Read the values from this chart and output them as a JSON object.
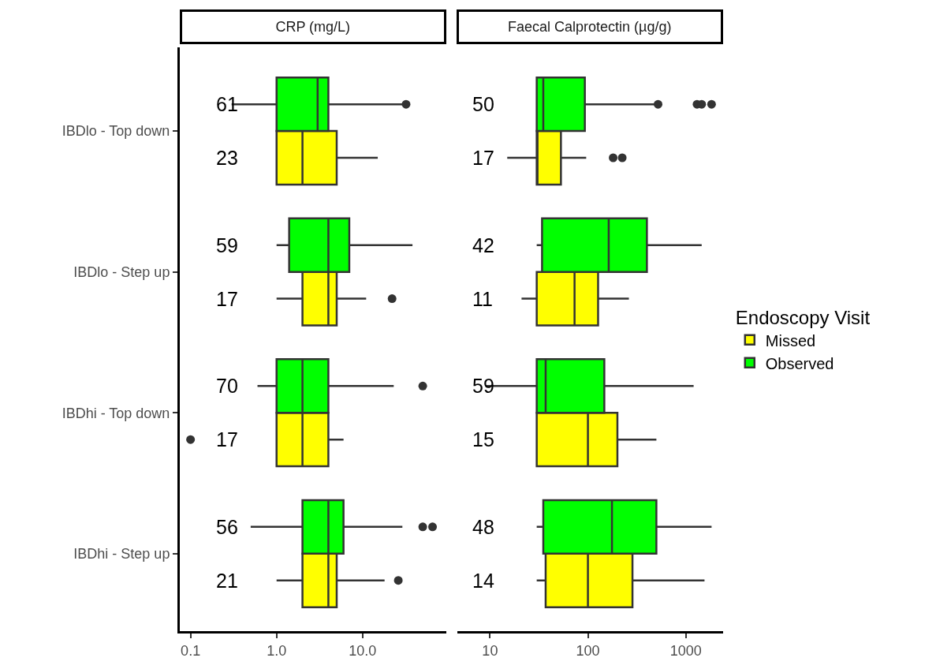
{
  "chart_data": [
    {
      "type": "box",
      "title": "CRP (mg/L)",
      "orientation": "horizontal",
      "log": "x",
      "legend": "right",
      "legend_title": "Endoscopy Visit",
      "categories": [
        "IBDlo - Top down",
        "IBDlo - Step up",
        "IBDhi - Top down",
        "IBDhi - Step up"
      ],
      "xlim": [
        0.075,
        93
      ],
      "xticks": [
        {
          "value": 0.1,
          "label": "0.1"
        },
        {
          "value": 1,
          "label": "1.0"
        },
        {
          "value": 10,
          "label": "10.0"
        }
      ],
      "series": [
        {
          "name": "Missed",
          "color": "#ffff00",
          "value_labels": [
            "23",
            "17",
            "17",
            "21"
          ],
          "boxes": [
            {
              "low": 1.0,
              "q1": 1.0,
              "median": 2.0,
              "q3": 5.0,
              "high": 15
            },
            {
              "low": 1.0,
              "q1": 2.0,
              "median": 4.0,
              "q3": 5.0,
              "high": 11,
              "outliers": [
                22
              ]
            },
            {
              "low": 1.0,
              "q1": 1.0,
              "median": 2.0,
              "q3": 4.0,
              "high": 6,
              "outliers": [
                0.1
              ]
            },
            {
              "low": 1.0,
              "q1": 2.0,
              "median": 4.0,
              "q3": 5.0,
              "high": 18,
              "outliers": [
                26
              ]
            }
          ]
        },
        {
          "name": "Observed",
          "color": "#00ff00",
          "value_labels": [
            "61",
            "59",
            "70",
            "56"
          ],
          "boxes": [
            {
              "low": 0.3,
              "q1": 1.0,
              "median": 3.0,
              "q3": 4.0,
              "high": 29,
              "outliers": [
                32
              ]
            },
            {
              "low": 1.0,
              "q1": 1.4,
              "median": 4.0,
              "q3": 7.0,
              "high": 38
            },
            {
              "low": 0.6,
              "q1": 1.0,
              "median": 2.0,
              "q3": 4.0,
              "high": 23,
              "outliers": [
                50
              ]
            },
            {
              "low": 0.5,
              "q1": 2.0,
              "median": 4.0,
              "q3": 6.0,
              "high": 29,
              "outliers": [
                50,
                65
              ]
            }
          ]
        }
      ]
    },
    {
      "type": "box",
      "title": "Faecal Calprotectin (µg/g)",
      "orientation": "horizontal",
      "log": "x",
      "tick_labels": "x",
      "xlim": [
        4.6,
        2400
      ],
      "xticks": [
        10,
        100,
        1000
      ],
      "series": [
        {
          "name": "Missed",
          "color": "#ffff00",
          "value_labels": [
            "17",
            "11",
            "15",
            "14"
          ],
          "boxes": [
            {
              "low": 15,
              "q1": 30,
              "median": 30,
              "q3": 53,
              "high": 96,
              "outliers": [
                181,
                224
              ]
            },
            {
              "low": 21,
              "q1": 30,
              "median": 73,
              "q3": 127,
              "high": 262
            },
            {
              "low": 30,
              "q1": 30,
              "median": 100,
              "q3": 200,
              "high": 500
            },
            {
              "low": 30,
              "q1": 37,
              "median": 100,
              "q3": 285,
              "high": 1550
            }
          ]
        },
        {
          "name": "Observed",
          "color": "#00ff00",
          "value_labels": [
            "50",
            "42",
            "59",
            "48"
          ],
          "boxes": [
            {
              "low": 30,
              "q1": 30,
              "median": 35,
              "q3": 93,
              "high": 480,
              "outliers": [
                520,
                1300,
                1450,
                1830
              ]
            },
            {
              "low": 30,
              "q1": 34,
              "median": 163,
              "q3": 400,
              "high": 1450
            },
            {
              "low": 9,
              "q1": 30,
              "median": 37,
              "q3": 147,
              "high": 1200
            },
            {
              "low": 30,
              "q1": 35,
              "median": 176,
              "q3": 500,
              "high": 1830
            }
          ]
        }
      ]
    }
  ]
}
